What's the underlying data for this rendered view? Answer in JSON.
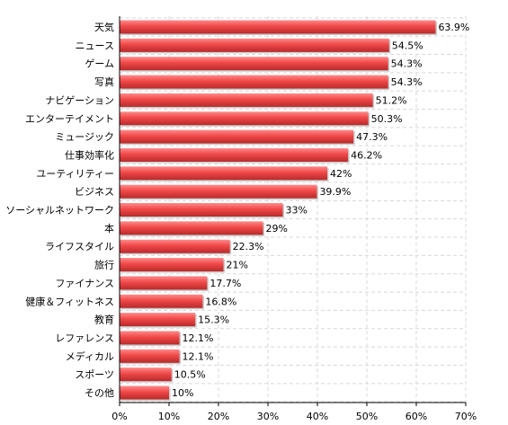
{
  "colors": {
    "bar": "#f04848",
    "bar_highlight": "#ff8a8a",
    "bar_shadow": "#b82a2a",
    "grid": "#d8d8d8",
    "axis": "#000000"
  },
  "chart_data": {
    "type": "bar",
    "orientation": "horizontal",
    "title": "",
    "xlabel": "",
    "ylabel": "",
    "xlim": [
      0,
      70
    ],
    "x_ticks": [
      0,
      10,
      20,
      30,
      40,
      50,
      60,
      70
    ],
    "x_tick_labels": [
      "0%",
      "10%",
      "20%",
      "30%",
      "40%",
      "50%",
      "60%",
      "70%"
    ],
    "grid": true,
    "legend": "none",
    "categories": [
      "天気",
      "ニュース",
      "ゲーム",
      "写真",
      "ナビゲーション",
      "エンターテイメント",
      "ミュージック",
      "仕事効率化",
      "ユーティリティー",
      "ビジネス",
      "ソーシャルネットワーク",
      "本",
      "ライフスタイル",
      "旅行",
      "ファイナンス",
      "健康＆フィットネス",
      "教育",
      "レファレンス",
      "メディカル",
      "スポーツ",
      "その他"
    ],
    "values": [
      63.9,
      54.5,
      54.3,
      54.3,
      51.2,
      50.3,
      47.3,
      46.2,
      42,
      39.9,
      33,
      29,
      22.3,
      21,
      17.7,
      16.8,
      15.3,
      12.1,
      12.1,
      10.5,
      10
    ],
    "value_labels": [
      "63.9%",
      "54.5%",
      "54.3%",
      "54.3%",
      "51.2%",
      "50.3%",
      "47.3%",
      "46.2%",
      "42%",
      "39.9%",
      "33%",
      "29%",
      "22.3%",
      "21%",
      "17.7%",
      "16.8%",
      "15.3%",
      "12.1%",
      "12.1%",
      "10.5%",
      "10%"
    ]
  }
}
